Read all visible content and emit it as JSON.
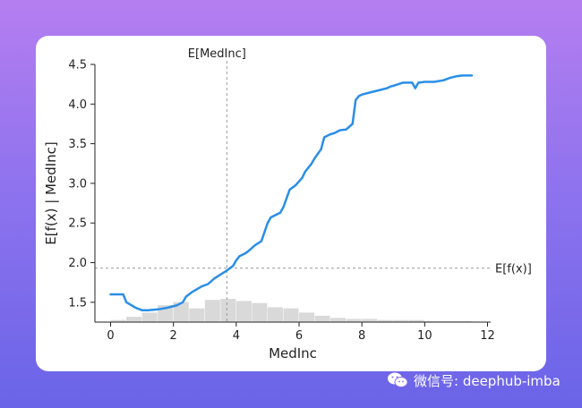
{
  "chart_data": {
    "type": "line",
    "title": "",
    "xlabel": "MedInc",
    "ylabel": "E[f(x) | MedInc]",
    "xlim": [
      -0.5,
      12.1
    ],
    "ylim": [
      1.25,
      4.5
    ],
    "xticks": [
      "0",
      "2",
      "4",
      "6",
      "8",
      "10",
      "12"
    ],
    "yticks": [
      "1.5",
      "2.0",
      "2.5",
      "3.0",
      "3.5",
      "4.0",
      "4.5"
    ],
    "grid": false,
    "line_color": "#2a8ee6",
    "reference_lines": {
      "vertical": {
        "label": "E[MedInc]",
        "x": 3.7
      },
      "horizontal": {
        "label": "E[f(x)]",
        "y": 1.93
      }
    },
    "series": [
      {
        "x": [
          0.0,
          0.4,
          0.5,
          0.8,
          1.0,
          1.2,
          1.5,
          1.8,
          2.1,
          2.3,
          2.4,
          2.6,
          2.9,
          3.1,
          3.3,
          3.5,
          3.7,
          3.9,
          4.0,
          4.1,
          4.3,
          4.4,
          4.6,
          4.8,
          5.0,
          5.1,
          5.4,
          5.5,
          5.7,
          5.9,
          6.1,
          6.2,
          6.4,
          6.5,
          6.7,
          6.8,
          7.0,
          7.1,
          7.3,
          7.5,
          7.7,
          7.8,
          7.9,
          8.0,
          8.3,
          8.6,
          8.8,
          8.9,
          9.0,
          9.3,
          9.6,
          9.7,
          9.8,
          10.0,
          10.3,
          10.6,
          10.8,
          11.0,
          11.2,
          11.5
        ],
        "y": [
          1.6,
          1.6,
          1.5,
          1.43,
          1.4,
          1.4,
          1.41,
          1.43,
          1.46,
          1.5,
          1.57,
          1.63,
          1.7,
          1.73,
          1.8,
          1.85,
          1.9,
          1.96,
          2.03,
          2.08,
          2.12,
          2.15,
          2.22,
          2.27,
          2.5,
          2.57,
          2.63,
          2.7,
          2.92,
          2.98,
          3.07,
          3.15,
          3.25,
          3.32,
          3.43,
          3.58,
          3.62,
          3.63,
          3.67,
          3.68,
          3.75,
          4.05,
          4.1,
          4.12,
          4.15,
          4.18,
          4.2,
          4.22,
          4.23,
          4.27,
          4.27,
          4.2,
          4.27,
          4.28,
          4.28,
          4.3,
          4.33,
          4.35,
          4.36,
          4.36
        ]
      }
    ],
    "histogram": {
      "bin_edges": [
        0.0,
        0.5,
        1.0,
        1.5,
        2.0,
        2.5,
        3.0,
        3.5,
        4.0,
        4.5,
        5.0,
        5.5,
        6.0,
        6.5,
        7.0,
        7.5,
        8.0,
        8.5,
        9.0,
        9.5,
        10.0,
        10.5,
        11.0,
        11.5
      ],
      "counts": [
        2,
        5,
        9,
        16,
        19,
        13,
        21,
        22,
        20,
        18,
        14,
        13,
        9,
        6,
        4,
        3,
        3,
        2,
        2,
        2,
        1,
        1,
        1
      ],
      "color": "#d9d9d9"
    }
  },
  "watermark": {
    "text": "微信号: deephub-imba",
    "icon": "wechat-icon"
  }
}
